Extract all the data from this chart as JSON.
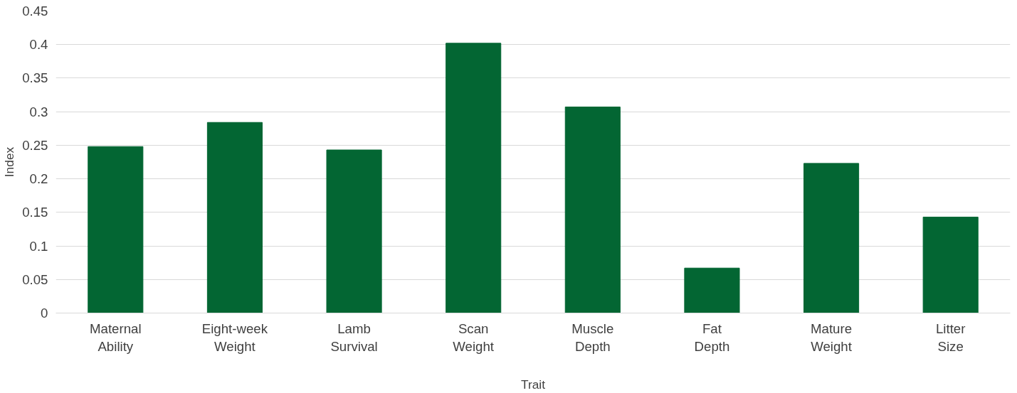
{
  "chart_data": {
    "type": "bar",
    "xlabel": "Trait",
    "ylabel": "Index",
    "categories": [
      "Maternal Ability",
      "Eight-week Weight",
      "Lamb Survival",
      "Scan Weight",
      "Muscle Depth",
      "Fat Depth",
      "Mature Weight",
      "Litter Size"
    ],
    "values": [
      0.248,
      0.284,
      0.243,
      0.402,
      0.307,
      0.067,
      0.223,
      0.143
    ],
    "color": "#036633",
    "ylim": [
      0,
      0.45
    ],
    "yticks": [
      0,
      0.05,
      0.1,
      0.15,
      0.2,
      0.25,
      0.3,
      0.35,
      0.4,
      0.45
    ],
    "grid": "y"
  }
}
